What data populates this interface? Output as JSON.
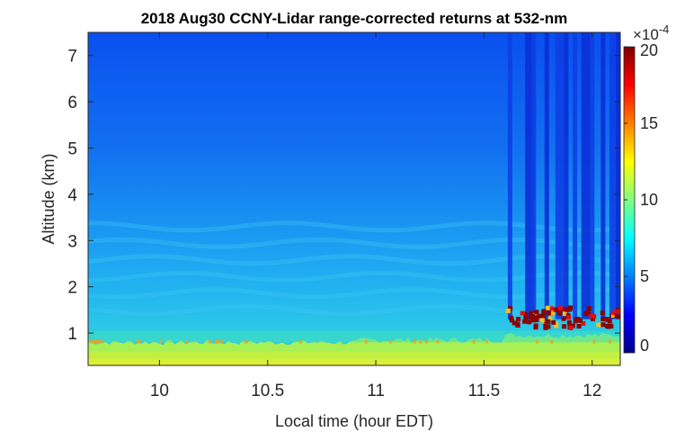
{
  "chart_data": {
    "type": "heatmap",
    "title": "2018 Aug30 CCNY-Lidar range-corrected returns at 532-nm",
    "xlabel": "Local time (hour EDT)",
    "ylabel": "Altitude (km)",
    "xlim": [
      9.67,
      12.13
    ],
    "ylim": [
      0.3,
      7.5
    ],
    "xticks": [
      "10",
      "10.5",
      "11",
      "11.5",
      "12"
    ],
    "yticks": [
      "1",
      "2",
      "3",
      "4",
      "5",
      "6",
      "7"
    ],
    "colorbar": {
      "colormap": "jet",
      "range": [
        0,
        20
      ],
      "ticks": [
        "0",
        "5",
        "10",
        "15",
        "20"
      ],
      "exponent_label": "×10",
      "exponent_power": "-4"
    },
    "features": {
      "boundary_layer_top_km": 0.8,
      "aerosol_layer_km": [
        1.5,
        3.3
      ],
      "cloud_base_km": 1.2,
      "cloud_start_hour": 11.6,
      "signal_dropout_start_hour": 11.6
    }
  }
}
